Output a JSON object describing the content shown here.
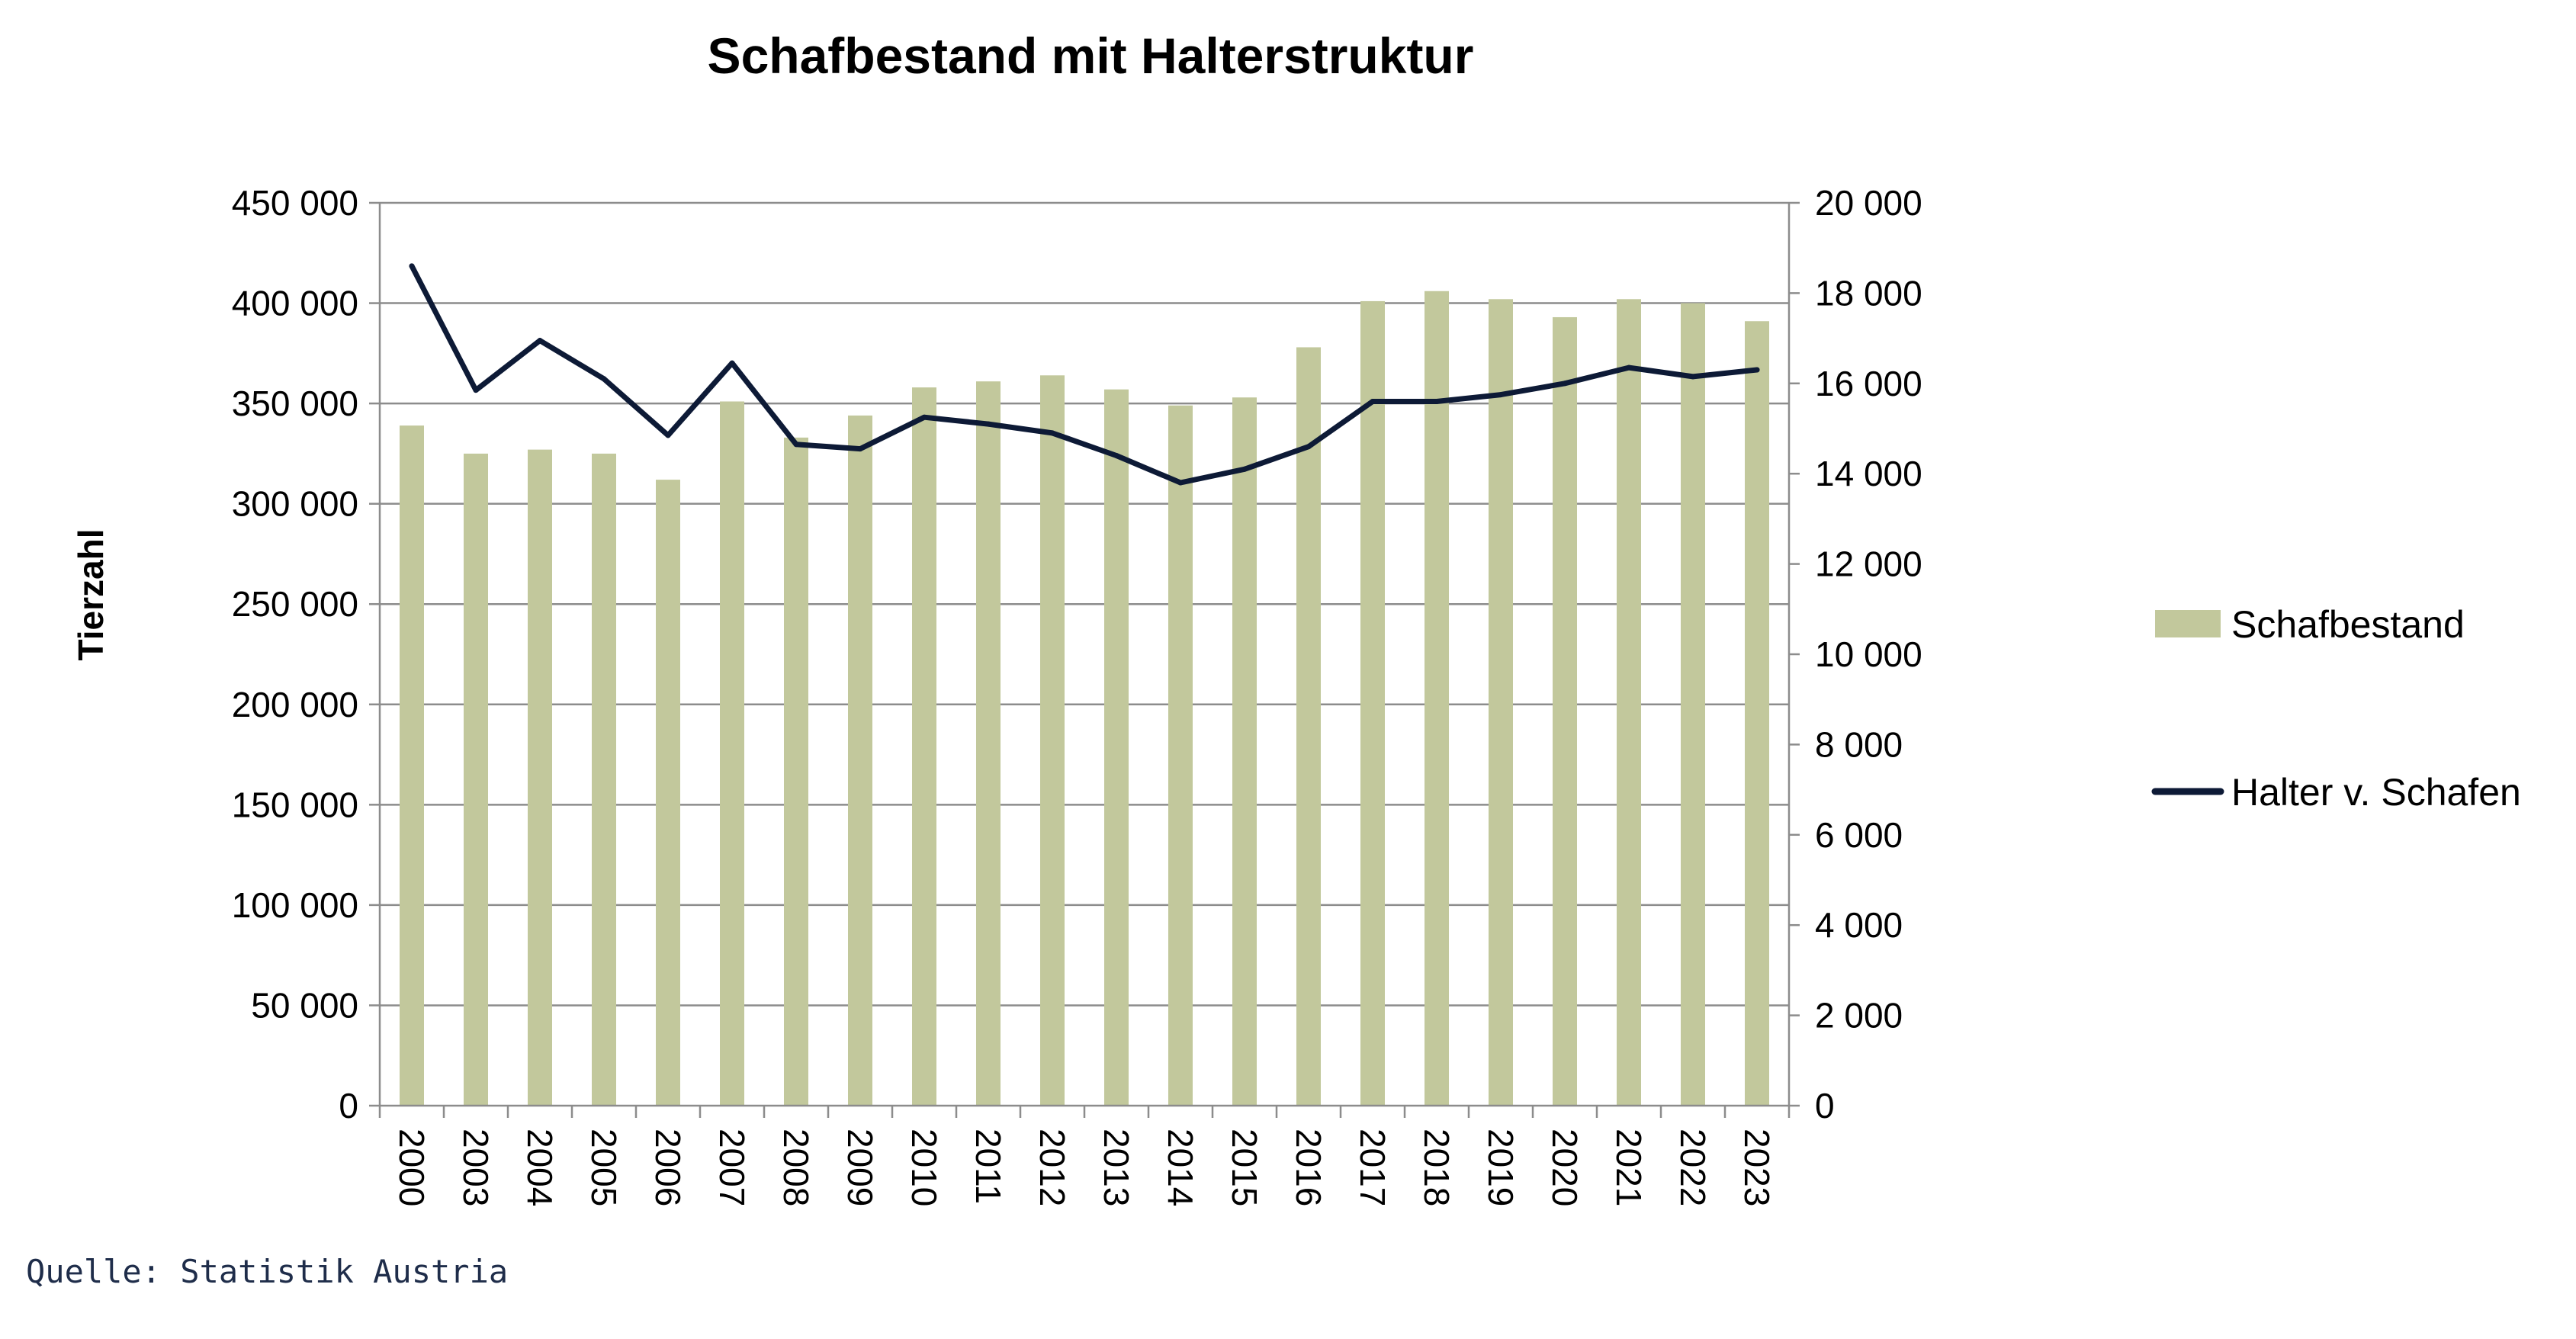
{
  "chart_data": {
    "type": "bar",
    "title": "Schafbestand mit Halterstruktur",
    "ylabel": "Tierzahl",
    "source": "Quelle: Statistik Austria",
    "categories": [
      "2000",
      "2003",
      "2004",
      "2005",
      "2006",
      "2007",
      "2008",
      "2009",
      "2010",
      "2011",
      "2012",
      "2013",
      "2014",
      "2015",
      "2016",
      "2017",
      "2018",
      "2019",
      "2020",
      "2021",
      "2022",
      "2023"
    ],
    "y_left": {
      "min": 0,
      "max": 450000,
      "step": 50000,
      "tick_labels": [
        "0",
        "50 000",
        "100 000",
        "150 000",
        "200 000",
        "250 000",
        "300 000",
        "350 000",
        "400 000",
        "450 000"
      ]
    },
    "y_right": {
      "min": 0,
      "max": 20000,
      "step": 2000,
      "tick_labels": [
        "0",
        "2 000",
        "4 000",
        "6 000",
        "8 000",
        "10 000",
        "12 000",
        "14 000",
        "16 000",
        "18 000",
        "20 000"
      ]
    },
    "grid": true,
    "legend_position": "right",
    "series": [
      {
        "name": "Schafbestand",
        "type": "bar",
        "axis": "left",
        "color": "#c2c89c",
        "values": [
          339000,
          325000,
          327000,
          325000,
          312000,
          351000,
          333000,
          344000,
          358000,
          361000,
          364000,
          357000,
          349000,
          353000,
          378000,
          401000,
          406000,
          402000,
          393000,
          402000,
          400000,
          391000
        ]
      },
      {
        "name": "Halter v. Schafen",
        "type": "line",
        "axis": "right",
        "color": "#0d1a36",
        "values": [
          18600,
          15850,
          16950,
          16100,
          14850,
          16450,
          14650,
          14550,
          15250,
          15100,
          14900,
          14400,
          13800,
          14100,
          14600,
          15600,
          15600,
          15750,
          16000,
          16350,
          16150,
          16300
        ]
      }
    ]
  }
}
